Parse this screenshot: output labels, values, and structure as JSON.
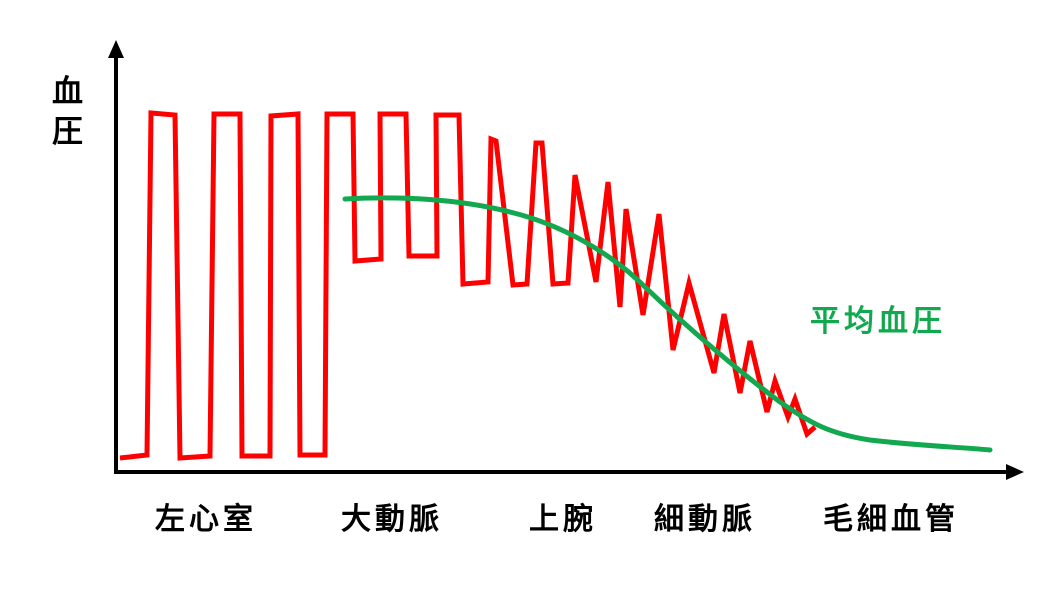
{
  "axis": {
    "y_title": [
      "血",
      "圧"
    ]
  },
  "regions": [
    "左心室",
    "大動脈",
    "上腕",
    "細動脈",
    "毛細血管"
  ],
  "legend": {
    "mean_pressure_label": "平均血圧"
  },
  "colors": {
    "pressure_wave": "#ff0000",
    "mean_pressure": "#11a84f",
    "axis": "#000000",
    "text": "#000000"
  }
}
